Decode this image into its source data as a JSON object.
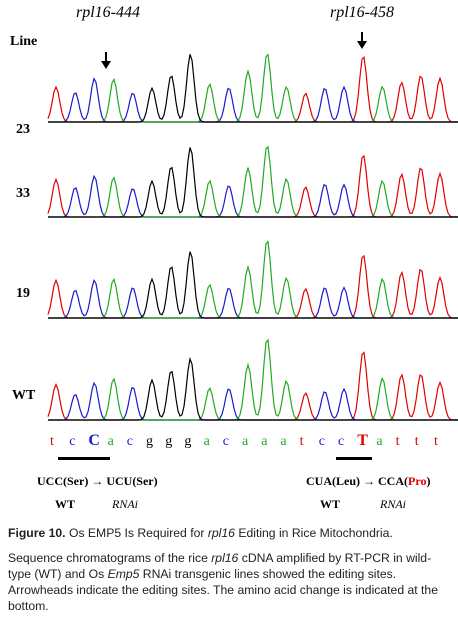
{
  "figure": {
    "sites": [
      {
        "label": "rpl16-444"
      },
      {
        "label": "rpl16-458"
      }
    ],
    "line_header": "Line",
    "lines": [
      "23",
      "33",
      "19",
      "WT"
    ],
    "sequence": [
      {
        "base": "t",
        "color": "#e00000"
      },
      {
        "base": "c",
        "color": "#1a1acc"
      },
      {
        "base": "C",
        "color": "#1a1acc",
        "edited": true
      },
      {
        "base": "a",
        "color": "#22aa22"
      },
      {
        "base": "c",
        "color": "#1a1acc"
      },
      {
        "base": "g",
        "color": "#000000"
      },
      {
        "base": "g",
        "color": "#000000"
      },
      {
        "base": "g",
        "color": "#000000"
      },
      {
        "base": "a",
        "color": "#22aa22"
      },
      {
        "base": "c",
        "color": "#1a1acc"
      },
      {
        "base": "a",
        "color": "#22aa22"
      },
      {
        "base": "a",
        "color": "#22aa22"
      },
      {
        "base": "a",
        "color": "#22aa22"
      },
      {
        "base": "t",
        "color": "#e00000"
      },
      {
        "base": "c",
        "color": "#1a1acc"
      },
      {
        "base": "c",
        "color": "#1a1acc"
      },
      {
        "base": "T",
        "color": "#e00000",
        "edited": true
      },
      {
        "base": "a",
        "color": "#22aa22"
      },
      {
        "base": "t",
        "color": "#e00000"
      },
      {
        "base": "t",
        "color": "#e00000"
      },
      {
        "base": "t",
        "color": "#e00000"
      }
    ],
    "change_left": "UCC(Ser) → UCU(Ser)",
    "change_right_prefix": "CUA(Leu) → CCA(",
    "change_right_pro": "Pro",
    "change_right_suffix": ")",
    "wt_label": "WT",
    "rnai_label": "RNAi",
    "trace_colors": {
      "t": "#e00000",
      "c": "#1a1acc",
      "a": "#22aa22",
      "g": "#000000"
    }
  },
  "caption": {
    "title_prefix": "Figure 10.",
    "title_a": " Os EMP5 Is Required for ",
    "title_gene": "rpl16",
    "title_b": " Editing in Rice Mitochondria.",
    "body_a": "Sequence chromatograms of the rice ",
    "body_gene": "rpl16",
    "body_b": " cDNA amplified by RT-PCR in wild-type (WT) and Os ",
    "body_emp": "Emp5",
    "body_c": " RNAi transgenic lines showed the editing sites. Arrowheads indicate the editing sites. The amino acid change is indicated at the bottom."
  }
}
